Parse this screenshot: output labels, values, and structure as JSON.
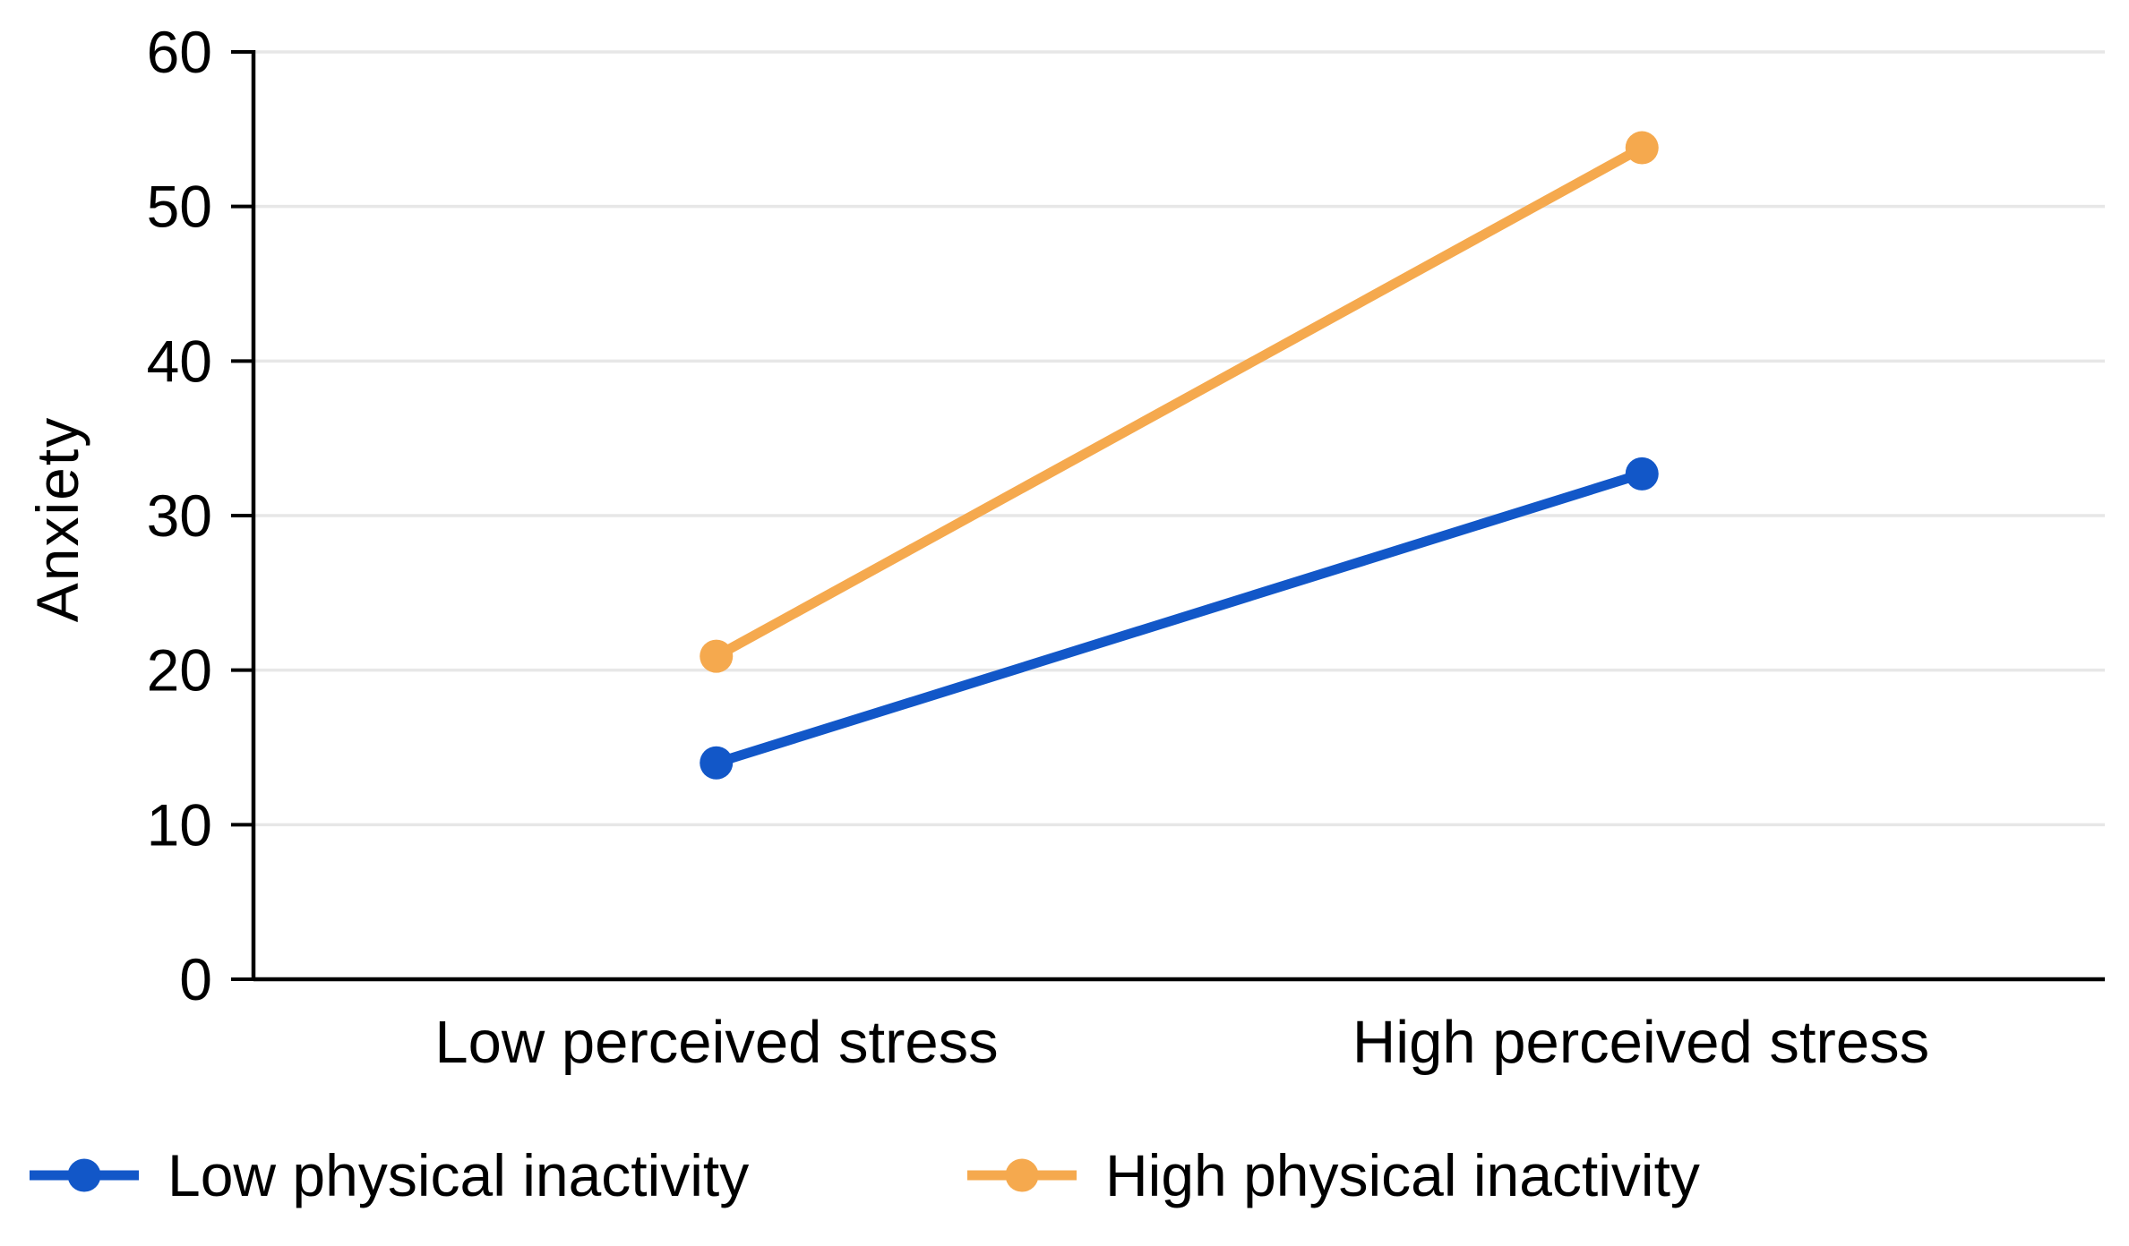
{
  "chart_data": {
    "type": "line",
    "title": "",
    "xlabel": "",
    "ylabel": "Anxiety",
    "categories": [
      "Low perceived stress",
      "High perceived stress"
    ],
    "series": [
      {
        "name": "Low physical inactivity",
        "color": "#1257C8",
        "values": [
          14.0,
          32.7
        ]
      },
      {
        "name": "High physical inactivity",
        "color": "#F5A94E",
        "values": [
          20.9,
          53.8
        ]
      }
    ],
    "ylim": [
      0,
      60
    ],
    "yticks": [
      0,
      10,
      20,
      30,
      40,
      50,
      60
    ],
    "grid": "horizontal",
    "legend_position": "bottom-left",
    "colors": {
      "gridline": "#e7e7e7",
      "axis": "#000000",
      "text": "#000000",
      "background": "#ffffff"
    }
  }
}
